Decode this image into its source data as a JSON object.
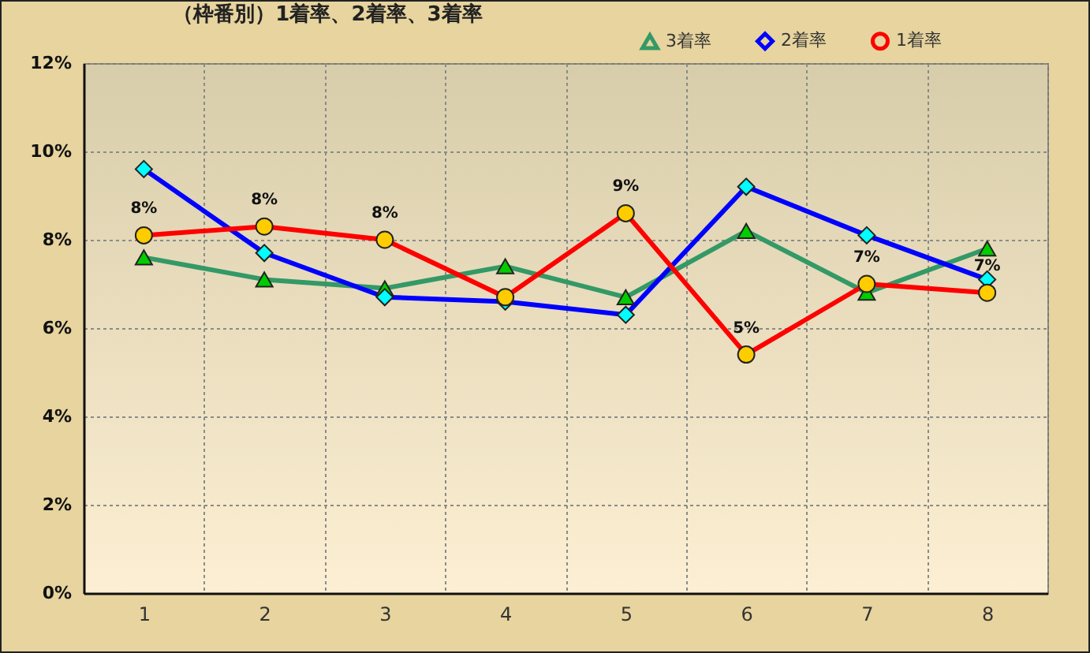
{
  "chart_data": {
    "type": "line",
    "title": "（枠番別）1着率、2着率、3着率",
    "categories": [
      "1",
      "2",
      "3",
      "4",
      "5",
      "6",
      "7",
      "8"
    ],
    "ylim": [
      0,
      12
    ],
    "yticks": [
      {
        "value": 0,
        "label": "0%"
      },
      {
        "value": 2,
        "label": "2%"
      },
      {
        "value": 4,
        "label": "4%"
      },
      {
        "value": 6,
        "label": "6%"
      },
      {
        "value": 8,
        "label": "8%"
      },
      {
        "value": 10,
        "label": "10%"
      },
      {
        "value": 12,
        "label": "12%"
      }
    ],
    "grid": true,
    "legend": "top right",
    "series": [
      {
        "name": "3着率",
        "color": "#339966",
        "marker": "triangle",
        "colors": [
          "#00cc00",
          "#00cc00",
          "#00cc00",
          "#00cc00",
          "#00cc00",
          "#00cc00",
          "#00cc00",
          "#00cc00"
        ],
        "values": [
          7.6,
          7.1,
          6.9,
          7.4,
          6.7,
          8.2,
          6.8,
          7.8
        ]
      },
      {
        "name": "2着率",
        "color": "#0000ff",
        "marker": "diamond",
        "colors": [
          "#00ffff",
          "#00ffff",
          "#00ffff",
          "#00ffff",
          "#00ffff",
          "#00ffff",
          "#00ffff",
          "#00ffff"
        ],
        "values": [
          9.6,
          7.7,
          6.7,
          6.6,
          6.3,
          9.2,
          8.1,
          7.1
        ]
      },
      {
        "name": "1着率",
        "color": "#ff0000",
        "marker": "circle",
        "colors": [
          "#ffcc00",
          "#ffcc00",
          "#ffcc00",
          "#ffcc00",
          "#ffcc00",
          "#ffcc00",
          "#ffcc00",
          "#ffcc00"
        ],
        "values": [
          8.1,
          8.3,
          8.0,
          6.7,
          8.6,
          5.4,
          7.0,
          6.8
        ],
        "value_labels": [
          "8%",
          "8%",
          "8%",
          null,
          "9%",
          "5%",
          "7%",
          "7%"
        ]
      }
    ]
  }
}
